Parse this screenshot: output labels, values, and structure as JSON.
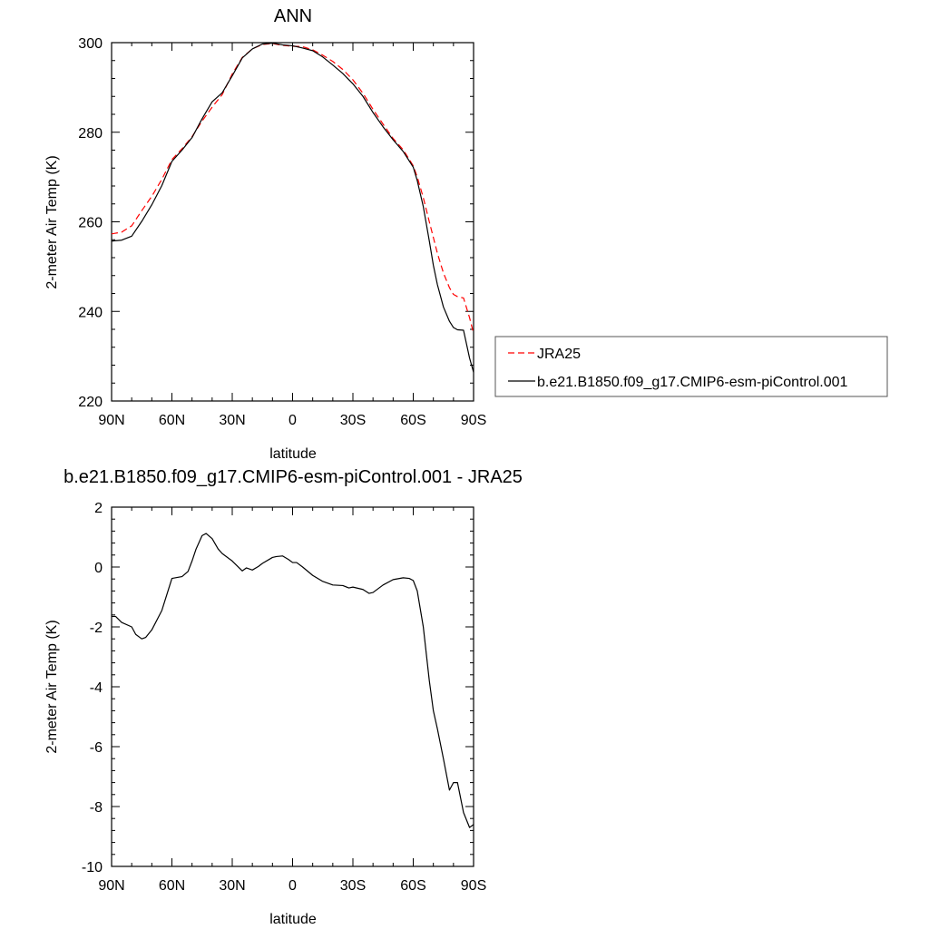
{
  "chart_data": [
    {
      "type": "line",
      "title": "ANN",
      "xlabel": "latitude",
      "ylabel": "2-meter Air Temp (K)",
      "xlim": [
        90,
        -90
      ],
      "ylim": [
        220,
        300
      ],
      "x_ticks": [
        90,
        60,
        30,
        0,
        -30,
        -60,
        -90
      ],
      "x_tick_labels": [
        "90N",
        "60N",
        "30N",
        "0",
        "30S",
        "60S",
        "90S"
      ],
      "y_ticks": [
        220,
        240,
        260,
        280,
        300
      ],
      "y_tick_labels": [
        "220",
        "240",
        "260",
        "280",
        "300"
      ],
      "grid": false,
      "legend_position": "right",
      "series": [
        {
          "name": "JRA25",
          "color": "#ff0000",
          "style": "dashed",
          "x": [
            90,
            85,
            80,
            75,
            70,
            65,
            60,
            55,
            50,
            45,
            40,
            35,
            30,
            25,
            20,
            15,
            10,
            5,
            0,
            -5,
            -10,
            -15,
            -20,
            -25,
            -30,
            -35,
            -40,
            -45,
            -50,
            -55,
            -60,
            -62,
            -65,
            -68,
            -70,
            -72,
            -75,
            -78,
            -80,
            -82,
            -85,
            -88,
            -90
          ],
          "y": [
            257.3,
            257.7,
            259.1,
            262.5,
            265.7,
            269.5,
            273.9,
            276.3,
            279.0,
            282.5,
            285.6,
            288.4,
            293.0,
            296.7,
            298.6,
            299.6,
            299.8,
            299.4,
            299.2,
            299.1,
            298.4,
            297.2,
            295.8,
            294.0,
            291.7,
            288.7,
            285.1,
            281.8,
            278.6,
            276.1,
            272.5,
            270.0,
            265.4,
            260.0,
            256.5,
            253.0,
            248.6,
            245.3,
            243.8,
            243.3,
            243.0,
            238.6,
            235.1
          ]
        },
        {
          "name": "b.e21.B1850.f09_g17.CMIP6-esm-piControl.001",
          "color": "#000000",
          "style": "solid",
          "x": [
            90,
            85,
            80,
            75,
            70,
            65,
            60,
            55,
            50,
            45,
            40,
            35,
            30,
            25,
            20,
            15,
            10,
            5,
            0,
            -5,
            -10,
            -15,
            -20,
            -25,
            -30,
            -35,
            -40,
            -45,
            -50,
            -55,
            -60,
            -62,
            -65,
            -68,
            -70,
            -72,
            -75,
            -78,
            -80,
            -82,
            -85,
            -88,
            -90
          ],
          "y": [
            255.7,
            255.9,
            256.8,
            260.1,
            263.8,
            268.1,
            273.5,
            276.0,
            278.8,
            283.0,
            286.8,
            288.8,
            292.6,
            296.6,
            298.6,
            299.7,
            299.9,
            299.5,
            299.3,
            298.8,
            298.2,
            296.8,
            295.0,
            293.1,
            290.8,
            288.0,
            284.4,
            281.2,
            278.3,
            275.7,
            272.2,
            269.2,
            263.4,
            255.7,
            250.3,
            246.0,
            241.0,
            237.8,
            236.4,
            235.9,
            235.8,
            229.6,
            226.4
          ]
        }
      ]
    },
    {
      "type": "line",
      "title": "b.e21.B1850.f09_g17.CMIP6-esm-piControl.001 - JRA25",
      "xlabel": "latitude",
      "ylabel": "2-meter Air Temp (K)",
      "xlim": [
        90,
        -90
      ],
      "ylim": [
        -10,
        2
      ],
      "x_ticks": [
        90,
        60,
        30,
        0,
        -30,
        -60,
        -90
      ],
      "x_tick_labels": [
        "90N",
        "60N",
        "30N",
        "0",
        "30S",
        "60S",
        "90S"
      ],
      "y_ticks": [
        -10,
        -8,
        -6,
        -4,
        -2,
        0,
        2
      ],
      "y_tick_labels": [
        "-10",
        "-8",
        "-6",
        "-4",
        "-2",
        "0",
        "2"
      ],
      "grid": false,
      "series": [
        {
          "color": "#000000",
          "style": "solid",
          "x": [
            90,
            88,
            85,
            80,
            78,
            75,
            73,
            70,
            65,
            60,
            55,
            52,
            50,
            48,
            45,
            43,
            40,
            37,
            35,
            30,
            25,
            23,
            20,
            17,
            15,
            10,
            8,
            5,
            2,
            0,
            -2,
            -5,
            -10,
            -15,
            -20,
            -25,
            -28,
            -30,
            -35,
            -38,
            -40,
            -45,
            -50,
            -55,
            -58,
            -60,
            -62,
            -65,
            -68,
            -70,
            -72,
            -75,
            -78,
            -80,
            -82,
            -85,
            -88,
            -90
          ],
          "y": [
            -1.65,
            -1.65,
            -1.85,
            -2.0,
            -2.25,
            -2.4,
            -2.35,
            -2.1,
            -1.45,
            -0.38,
            -0.32,
            -0.15,
            0.2,
            0.6,
            1.05,
            1.12,
            0.95,
            0.6,
            0.45,
            0.2,
            -0.13,
            -0.03,
            -0.1,
            0.02,
            0.12,
            0.32,
            0.35,
            0.37,
            0.25,
            0.15,
            0.15,
            0.0,
            -0.28,
            -0.48,
            -0.6,
            -0.62,
            -0.7,
            -0.67,
            -0.75,
            -0.88,
            -0.85,
            -0.6,
            -0.42,
            -0.36,
            -0.38,
            -0.45,
            -0.8,
            -2.0,
            -3.8,
            -4.8,
            -5.4,
            -6.4,
            -7.45,
            -7.2,
            -7.2,
            -8.2,
            -8.7,
            -8.6
          ]
        }
      ]
    }
  ]
}
